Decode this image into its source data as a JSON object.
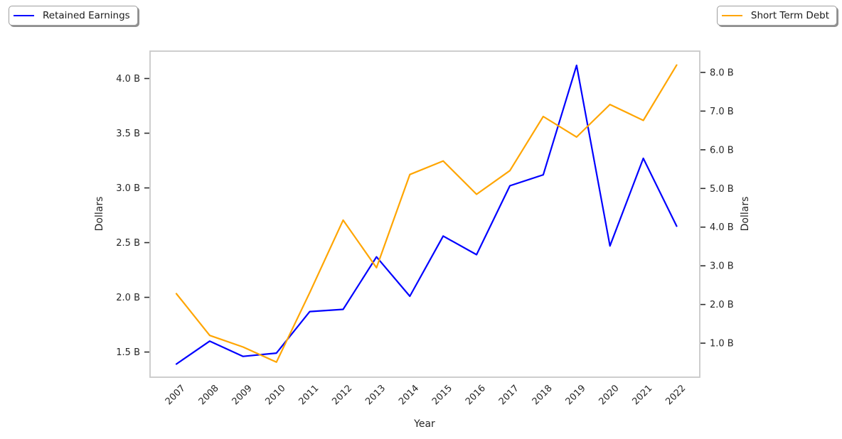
{
  "figure": {
    "background": "#ffffff"
  },
  "legends": [
    {
      "label": "Retained Earnings",
      "color": "#0000ff",
      "position": "top-left"
    },
    {
      "label": "Short Term Debt",
      "color": "#ffa500",
      "position": "top-right"
    }
  ],
  "chart_data": {
    "type": "line",
    "categories": [
      "2007",
      "2008",
      "2009",
      "2010",
      "2011",
      "2012",
      "2013",
      "2014",
      "2015",
      "2016",
      "2017",
      "2018",
      "2019",
      "2020",
      "2021",
      "2022"
    ],
    "series": [
      {
        "name": "Retained Earnings",
        "axis": "left",
        "color": "#0000ff",
        "values": [
          1.39,
          1.6,
          1.46,
          1.49,
          1.87,
          1.89,
          2.37,
          2.01,
          2.56,
          2.39,
          3.02,
          3.12,
          4.12,
          2.47,
          3.27,
          2.65
        ]
      },
      {
        "name": "Short Term Debt",
        "axis": "right",
        "color": "#ffa500",
        "values": [
          2.28,
          1.2,
          0.9,
          0.51,
          2.31,
          4.18,
          2.95,
          5.36,
          5.71,
          4.85,
          5.46,
          6.86,
          6.33,
          7.17,
          6.76,
          8.19
        ]
      }
    ],
    "axes": {
      "left": {
        "label": "Dollars",
        "unit": "B",
        "ticks": [
          1.5,
          2.0,
          2.5,
          3.0,
          3.5,
          4.0
        ],
        "tick_labels": [
          "1.5 B",
          "2.0 B",
          "2.5 B",
          "3.0 B",
          "3.5 B",
          "4.0 B"
        ],
        "range": [
          1.27,
          4.25
        ]
      },
      "right": {
        "label": "Dollars",
        "unit": "B",
        "ticks": [
          1.0,
          2.0,
          3.0,
          4.0,
          5.0,
          6.0,
          7.0,
          8.0
        ],
        "tick_labels": [
          "1.0 B",
          "2.0 B",
          "3.0 B",
          "4.0 B",
          "5.0 B",
          "6.0 B",
          "7.0 B",
          "8.0 B"
        ],
        "range": [
          0.12,
          8.55
        ]
      },
      "x": {
        "label": "Year",
        "tick_rotation": 45
      }
    },
    "grid": false,
    "legend_position": [
      "top-left",
      "top-right"
    ],
    "spine_color": "#c9c9c9",
    "tick_color": "#2e2e2e"
  }
}
